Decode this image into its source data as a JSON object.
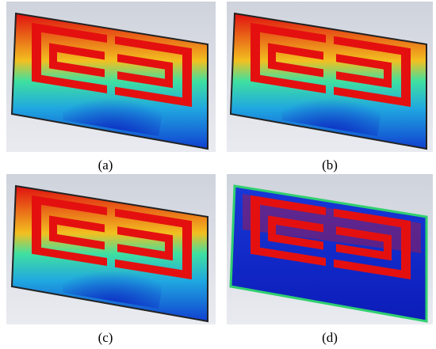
{
  "panels": [
    {
      "label": "(a)"
    },
    {
      "label": "(b)"
    },
    {
      "label": "(c)"
    },
    {
      "label": "(d)"
    }
  ]
}
